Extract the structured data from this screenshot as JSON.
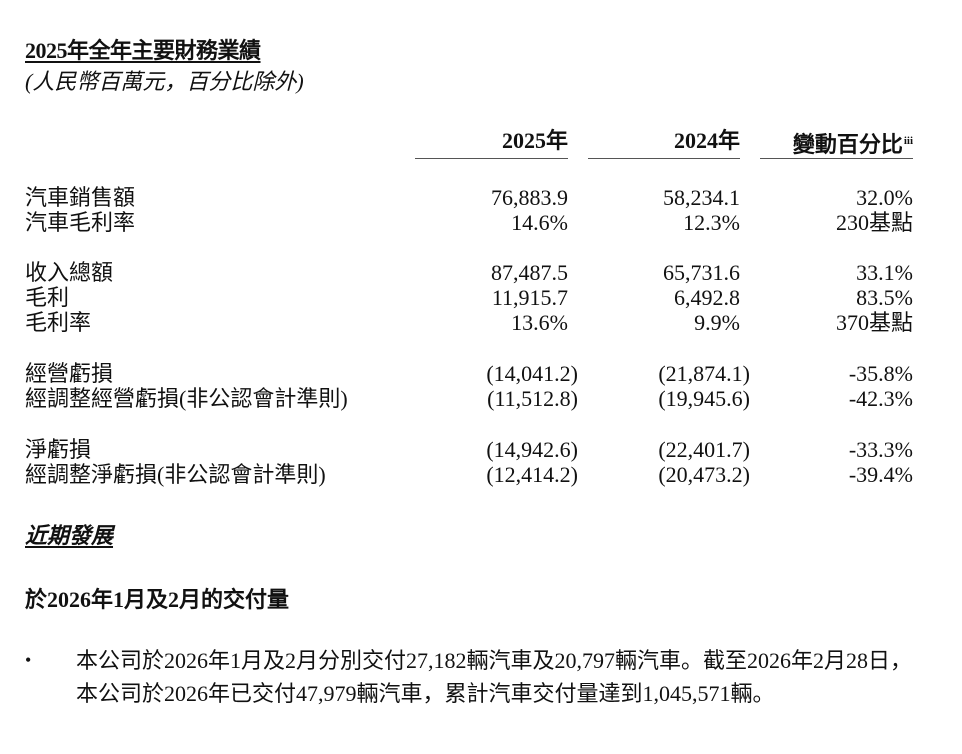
{
  "title": "2025年全年主要財務業績",
  "subtitle": "(人民幣百萬元，百分比除外)",
  "table": {
    "headers": [
      "2025年",
      "2024年",
      "變動百分比"
    ],
    "change_note": "iii",
    "groups": [
      {
        "rows": [
          {
            "label": "汽車銷售額",
            "v2025": "76,883.9",
            "v2024": "58,234.1",
            "change": "32.0%"
          },
          {
            "label": "汽車毛利率",
            "v2025": "14.6%",
            "v2024": "12.3%",
            "change": "230基點"
          }
        ]
      },
      {
        "rows": [
          {
            "label": "收入總額",
            "v2025": "87,487.5",
            "v2024": "65,731.6",
            "change": "33.1%"
          },
          {
            "label": "毛利",
            "v2025": "11,915.7",
            "v2024": "6,492.8",
            "change": "83.5%"
          },
          {
            "label": "毛利率",
            "v2025": "13.6%",
            "v2024": "9.9%",
            "change": "370基點"
          }
        ]
      },
      {
        "rows": [
          {
            "label": "經營虧損",
            "v2025": "(14,041.2)",
            "v2024": "(21,874.1)",
            "change": "-35.8%"
          },
          {
            "label": "經調整經營虧損(非公認會計準則)",
            "v2025": "(11,512.8)",
            "v2024": "(19,945.6)",
            "change": "-42.3%"
          }
        ]
      },
      {
        "rows": [
          {
            "label": "淨虧損",
            "v2025": "(14,942.6)",
            "v2024": "(22,401.7)",
            "change": "-33.3%"
          },
          {
            "label": "經調整淨虧損(非公認會計準則)",
            "v2025": "(12,414.2)",
            "v2024": "(20,473.2)",
            "change": "-39.4%"
          }
        ]
      }
    ]
  },
  "section_title": "近期發展",
  "subsection_title": "於2026年1月及2月的交付量",
  "bullet_symbol": "•",
  "bullet_text": "本公司於2026年1月及2月分別交付27,182輛汽車及20,797輛汽車。截至2026年2月28日，本公司於2026年已交付47,979輛汽車，累計汽車交付量達到1,045,571輛。"
}
